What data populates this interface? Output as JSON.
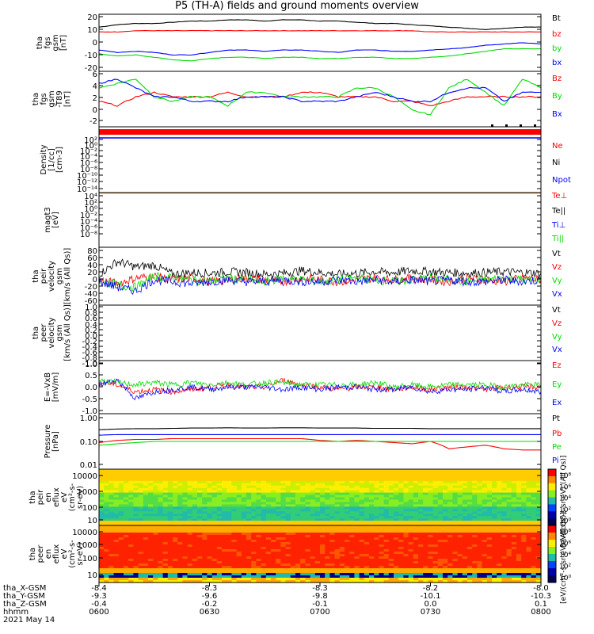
{
  "title": "P5 (TH-A) fields and ground moments overview",
  "colors": {
    "black": "#000000",
    "red": "#ff0000",
    "green": "#00dd00",
    "blue": "#0000ff"
  },
  "chart_data": [
    {
      "type": "line",
      "ylabel": [
        "tha",
        "fgs",
        "gsm",
        "[nT]"
      ],
      "yticks": [
        20,
        10,
        0,
        -10,
        -20
      ],
      "ylim": [
        -20,
        22
      ],
      "legend": [
        {
          "name": "Bt",
          "color": "black"
        },
        {
          "name": "bz",
          "color": "red"
        },
        {
          "name": "by",
          "color": "green"
        },
        {
          "name": "bx",
          "color": "blue"
        }
      ],
      "x": [
        600,
        605,
        610,
        615,
        620,
        625,
        630,
        635,
        640,
        645,
        650,
        655,
        700,
        705,
        710,
        715,
        720,
        725,
        730,
        735,
        740,
        745,
        750,
        755,
        800
      ],
      "series": [
        {
          "name": "Bt",
          "color": "black",
          "values": [
            14,
            16,
            17,
            17,
            18,
            19,
            19,
            20,
            20,
            19,
            20,
            20,
            19,
            19,
            18,
            17,
            17,
            16,
            15,
            14,
            13,
            12,
            13,
            14,
            14
          ]
        },
        {
          "name": "bz",
          "color": "red",
          "values": [
            10,
            10,
            11,
            11,
            11,
            11,
            11,
            11,
            11,
            11,
            11,
            11,
            11,
            11,
            11,
            11,
            11,
            11,
            10,
            10,
            10,
            10,
            10,
            10,
            10
          ]
        },
        {
          "name": "by",
          "color": "green",
          "values": [
            -8,
            -10,
            -9,
            -11,
            -13,
            -14,
            -12,
            -11,
            -11,
            -12,
            -11,
            -11,
            -12,
            -12,
            -11,
            -11,
            -12,
            -12,
            -11,
            -10,
            -8,
            -6,
            -4,
            -4,
            -4
          ]
        },
        {
          "name": "bx",
          "color": "blue",
          "values": [
            -5,
            -7,
            -6,
            -7,
            -9,
            -9,
            -7,
            -5,
            -5,
            -6,
            -5,
            -5,
            -6,
            -7,
            -5,
            -5,
            -6,
            -6,
            -5,
            -4,
            -3,
            -1,
            0,
            1,
            0
          ]
        }
      ]
    },
    {
      "type": "line",
      "ylabel": [
        "tha",
        "fgs",
        "gsm",
        "-T89",
        "[nT]"
      ],
      "yticks": [
        6,
        4,
        2,
        0,
        -2,
        -4
      ],
      "ylim": [
        -5,
        6
      ],
      "legend": [
        {
          "name": "Bz",
          "color": "red"
        },
        {
          "name": "By",
          "color": "green"
        },
        {
          "name": "Bx",
          "color": "blue"
        }
      ],
      "x": [
        600,
        605,
        610,
        615,
        620,
        625,
        630,
        635,
        640,
        645,
        650,
        655,
        700,
        705,
        710,
        715,
        720,
        725,
        730,
        735,
        740,
        745,
        750,
        755,
        800
      ],
      "series": [
        {
          "name": "Bz",
          "color": "red",
          "values": [
            0,
            -1,
            1,
            2,
            1,
            1,
            1,
            2,
            1,
            1,
            1,
            2,
            2,
            1,
            1,
            1,
            0,
            0,
            -1,
            0,
            1,
            1,
            1,
            1,
            1
          ]
        },
        {
          "name": "By",
          "color": "green",
          "values": [
            3,
            4,
            5,
            1,
            0,
            1,
            1,
            -1,
            2,
            2,
            1,
            1,
            1,
            1,
            3,
            3,
            1,
            -2,
            -3,
            3,
            5,
            2,
            -1,
            5,
            3
          ]
        },
        {
          "name": "Bx",
          "color": "blue",
          "values": [
            4,
            5,
            3,
            1,
            1,
            0,
            0,
            0,
            1,
            1,
            1,
            0,
            0,
            0,
            1,
            2,
            1,
            0,
            0,
            2,
            3,
            3,
            0,
            2,
            2
          ]
        }
      ]
    },
    {
      "type": "line",
      "ylabel": [
        "Density",
        "[1/cc]",
        "[cm-3]"
      ],
      "yticks": [
        "10²",
        "10⁰",
        "10⁻²",
        "10⁻⁴",
        "10⁻⁶",
        "10⁻⁸",
        "10⁻¹⁰",
        "10⁻¹²",
        "10⁻¹⁴"
      ],
      "legend": [
        {
          "name": "Ne",
          "color": "red"
        },
        {
          "name": "Ni",
          "color": "black"
        },
        {
          "name": "Npot",
          "color": "blue"
        }
      ]
    },
    {
      "type": "line",
      "ylabel": [
        "magt3",
        "[eV]"
      ],
      "yticks": [
        "10⁴",
        "10²",
        "10⁰",
        "10⁻²",
        "10⁻⁴",
        "10⁻⁶",
        "10⁻⁸"
      ],
      "legend": [
        {
          "name": "Te⊥",
          "color": "red"
        },
        {
          "name": "Te||",
          "color": "black"
        },
        {
          "name": "Ti⊥",
          "color": "blue"
        },
        {
          "name": "Ti||",
          "color": "green"
        }
      ]
    },
    {
      "type": "line",
      "ylabel": [
        "tha",
        "peir",
        "velocity",
        "gsm",
        "[km/s (All Qs)]"
      ],
      "yticks": [
        80,
        60,
        40,
        20,
        0,
        -20,
        -40,
        -60
      ],
      "ylim": [
        -60,
        80
      ],
      "legend": [
        {
          "name": "Vt",
          "color": "black"
        },
        {
          "name": "Vz",
          "color": "red"
        },
        {
          "name": "Vy",
          "color": "green"
        },
        {
          "name": "Vx",
          "color": "blue"
        }
      ],
      "x": [
        600,
        605,
        610,
        615,
        620,
        625,
        630,
        635,
        640,
        645,
        650,
        655,
        700,
        705,
        710,
        715,
        720,
        725,
        730,
        735,
        740,
        745,
        750,
        755,
        800
      ],
      "series": [
        {
          "name": "Vt",
          "color": "black",
          "values": [
            15,
            50,
            35,
            40,
            15,
            20,
            18,
            22,
            20,
            15,
            18,
            25,
            20,
            15,
            18,
            22,
            20,
            25,
            22,
            20,
            18,
            20,
            22,
            20,
            18
          ]
        },
        {
          "name": "Vz",
          "color": "red",
          "values": [
            0,
            -10,
            5,
            10,
            0,
            5,
            -5,
            0,
            5,
            0,
            -5,
            5,
            0,
            -5,
            0,
            5,
            0,
            5,
            0,
            -5,
            5,
            0,
            -5,
            5,
            0
          ]
        },
        {
          "name": "Vy",
          "color": "green",
          "values": [
            0,
            -15,
            -20,
            10,
            5,
            0,
            -5,
            5,
            0,
            -5,
            5,
            0,
            -5,
            0,
            5,
            0,
            -5,
            0,
            5,
            0,
            -5,
            0,
            5,
            0,
            0
          ]
        },
        {
          "name": "Vx",
          "color": "blue",
          "values": [
            -5,
            -20,
            -30,
            0,
            -5,
            -10,
            -5,
            0,
            -5,
            -5,
            0,
            -5,
            -5,
            0,
            -5,
            0,
            -5,
            0,
            -5,
            0,
            -5,
            -5,
            0,
            -5,
            0
          ]
        }
      ]
    },
    {
      "type": "line",
      "ylabel": [
        "tha",
        "peer",
        "velocity",
        "gsm",
        "[km/s (All Qs)]"
      ],
      "yticks": [
        "1.0",
        "0.8",
        "0.6",
        "0.4",
        "0.2",
        "0.0",
        "-0.2",
        "-0.4",
        "-0.6",
        "-0.8",
        "-1.0"
      ],
      "ylim": [
        -1,
        1
      ],
      "legend": [
        {
          "name": "Vt",
          "color": "black"
        },
        {
          "name": "Vz",
          "color": "red"
        },
        {
          "name": "Vy",
          "color": "green"
        },
        {
          "name": "Vx",
          "color": "blue"
        }
      ]
    },
    {
      "type": "line",
      "ylabel": [
        "E=-VxB",
        "[mV/m]"
      ],
      "yticks": [
        "1.0",
        "0.5",
        "0.0",
        "-0.5",
        "-1.0"
      ],
      "ylim": [
        -1,
        1
      ],
      "legend": [
        {
          "name": "Ez",
          "color": "red"
        },
        {
          "name": "Ey",
          "color": "green"
        },
        {
          "name": "Ex",
          "color": "blue"
        }
      ],
      "x": [
        600,
        605,
        610,
        615,
        620,
        625,
        630,
        635,
        640,
        645,
        650,
        655,
        700,
        705,
        710,
        715,
        720,
        725,
        730,
        735,
        740,
        745,
        750,
        755,
        800
      ],
      "series": [
        {
          "name": "Ez",
          "color": "red",
          "values": [
            0.2,
            0.1,
            -0.2,
            -0.1,
            -0.2,
            -0.1,
            0.0,
            0.1,
            0.0,
            0.0,
            0.3,
            0.1,
            0.0,
            -0.1,
            0.0,
            0.0,
            -0.1,
            0.0,
            -0.1,
            0.0,
            0.0,
            -0.1,
            0.0,
            0.0,
            0.0
          ]
        },
        {
          "name": "Ey",
          "color": "green",
          "values": [
            0.3,
            0.2,
            0.1,
            0.2,
            0.1,
            0.2,
            0.1,
            0.2,
            0.1,
            0.2,
            0.2,
            0.1,
            0.1,
            0.1,
            0.1,
            0.2,
            0.0,
            0.1,
            0.0,
            0.1,
            0.1,
            0.1,
            0.0,
            0.1,
            0.1
          ]
        },
        {
          "name": "Ex",
          "color": "blue",
          "values": [
            0.1,
            0.3,
            -0.5,
            -0.2,
            -0.1,
            0.0,
            -0.1,
            0.0,
            0.0,
            0.0,
            -0.1,
            0.0,
            -0.1,
            0.0,
            0.0,
            -0.1,
            -0.1,
            0.0,
            -0.2,
            -0.1,
            -0.1,
            0.0,
            -0.2,
            -0.1,
            -0.2
          ]
        }
      ]
    },
    {
      "type": "line",
      "ylabel": [
        "Pressure",
        "[nPa]"
      ],
      "yticks": [
        "1.00",
        "0.10",
        "0.01"
      ],
      "scale": "log",
      "ylim": [
        0.01,
        1.0
      ],
      "legend": [
        {
          "name": "Pt",
          "color": "black"
        },
        {
          "name": "Pb",
          "color": "red"
        },
        {
          "name": "Pe",
          "color": "green"
        },
        {
          "name": "Pi",
          "color": "blue"
        }
      ],
      "x": [
        600,
        605,
        610,
        615,
        620,
        625,
        630,
        635,
        640,
        645,
        650,
        655,
        700,
        705,
        710,
        715,
        720,
        725,
        730,
        735,
        740,
        745,
        750,
        755,
        800
      ],
      "series": [
        {
          "name": "Pt",
          "color": "black",
          "values": [
            0.3,
            0.32,
            0.33,
            0.33,
            0.34,
            0.35,
            0.35,
            0.36,
            0.35,
            0.35,
            0.36,
            0.36,
            0.35,
            0.35,
            0.35,
            0.34,
            0.34,
            0.34,
            0.33,
            0.33,
            0.33,
            0.33,
            0.33,
            0.33,
            0.33
          ]
        },
        {
          "name": "Pb",
          "color": "red",
          "values": [
            0.09,
            0.11,
            0.12,
            0.12,
            0.13,
            0.13,
            0.13,
            0.13,
            0.13,
            0.13,
            0.13,
            0.13,
            0.11,
            0.1,
            0.11,
            0.1,
            0.09,
            0.08,
            0.1,
            0.05,
            0.06,
            0.07,
            0.05,
            0.045,
            0.045
          ]
        },
        {
          "name": "Pe",
          "color": "green",
          "values": [
            0.07,
            0.08,
            0.09,
            0.1,
            0.1,
            0.1,
            0.1,
            0.1,
            0.1,
            0.1,
            0.1,
            0.1,
            0.1,
            0.1,
            0.1,
            0.1,
            0.1,
            0.1,
            0.1,
            0.1,
            0.1,
            0.1,
            0.1,
            0.1,
            0.1
          ]
        },
        {
          "name": "Pi",
          "color": "blue",
          "values": [
            0.18,
            0.19,
            0.19,
            0.19,
            0.19,
            0.19,
            0.19,
            0.19,
            0.19,
            0.19,
            0.19,
            0.19,
            0.19,
            0.19,
            0.19,
            0.19,
            0.19,
            0.19,
            0.19,
            0.19,
            0.19,
            0.19,
            0.19,
            0.19,
            0.19
          ]
        }
      ]
    },
    {
      "type": "heatmap",
      "ylabel": [
        "tha",
        "peir",
        "en",
        "eflux",
        "eV",
        "(cm²-s-",
        "sr-eV)"
      ],
      "yticks": [
        "10000",
        "1000",
        "100",
        "10"
      ],
      "scale": "log"
    },
    {
      "type": "heatmap",
      "ylabel": [
        "tha",
        "peer",
        "en",
        "eflux",
        "eV",
        "(cm²-s-",
        "sr-eV)"
      ],
      "yticks": [
        "10000",
        "1000",
        "100",
        "10"
      ],
      "scale": "log"
    }
  ],
  "colorbars": [
    {
      "ticks": [
        "10⁸",
        "10⁶",
        "10⁴",
        "10²",
        "10⁰"
      ],
      "label": "[eV/(cm²-s-sr-eV) (All Qs)]"
    },
    {
      "ticks": [
        "10⁸",
        "10⁶",
        "10⁴",
        "10²",
        "10⁰"
      ],
      "label": "[eV/(cm²-s-sr-eV) (All Qs)]"
    }
  ],
  "xaxis": {
    "row_labels": [
      "tha_X-GSM",
      "tha_Y-GSM",
      "tha_Z-GSM",
      "hhmm",
      "2021 May 14"
    ],
    "ticks": [
      {
        "x": 600,
        "vals": [
          "-8.4",
          "-9.3",
          "-0.4",
          "0600"
        ]
      },
      {
        "x": 630,
        "vals": [
          "-8.3",
          "-9.6",
          "-0.2",
          "0630"
        ]
      },
      {
        "x": 700,
        "vals": [
          "-8.3",
          "-9.8",
          "-0.1",
          "0700"
        ]
      },
      {
        "x": 730,
        "vals": [
          "-8.2",
          "-10.1",
          "0.0",
          "0730"
        ]
      },
      {
        "x": 800,
        "vals": [
          "-8.0",
          "-10.3",
          "0.1",
          "0800"
        ]
      }
    ]
  }
}
